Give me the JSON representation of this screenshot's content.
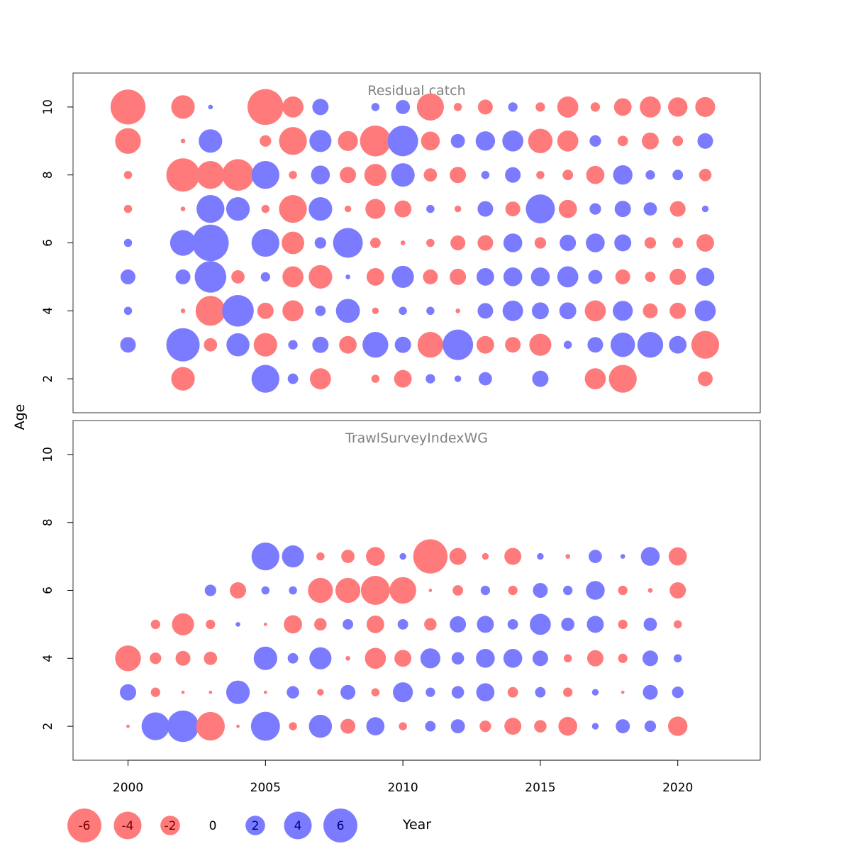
{
  "figure": {
    "ylabel": "Age",
    "xlabel": "Year",
    "colors": {
      "positive": "#7b7bff",
      "negative": "#ff7b7b",
      "panel_border": "#333333",
      "title": "#808080"
    }
  },
  "legend": {
    "values": [
      -6,
      -4,
      -2,
      0,
      2,
      4,
      6
    ],
    "labels": [
      "-6",
      "-4",
      "-2",
      "0",
      "2",
      "4",
      "6"
    ]
  },
  "chart_data": [
    {
      "type": "scatter",
      "title": "Residual catch",
      "xlim": [
        1998,
        2023
      ],
      "ylim": [
        1,
        11
      ],
      "yticks": [
        2,
        4,
        6,
        8,
        10
      ],
      "xticks": [
        2000,
        2005,
        2010,
        2015,
        2020
      ],
      "years": [
        2000,
        2002,
        2003,
        2004,
        2005,
        2006,
        2007,
        2008,
        2009,
        2010,
        2011,
        2012,
        2013,
        2014,
        2015,
        2016,
        2017,
        2018,
        2019,
        2020,
        2021
      ],
      "ages": [
        2,
        3,
        4,
        5,
        6,
        7,
        8,
        9,
        10
      ],
      "residuals": {
        "2000": [
          null,
          1.1,
          0.3,
          1.0,
          0.3,
          -0.3,
          -0.3,
          -3.0,
          -5.5
        ],
        "2002": [
          -2.5,
          5.0,
          -0.1,
          1.0,
          3.0,
          -0.1,
          -5.0,
          -0.1,
          -2.5
        ],
        "2003": [
          null,
          -0.8,
          -4.0,
          4.5,
          6.0,
          3.5,
          -3.5,
          2.5,
          0.1
        ],
        "2004": [
          null,
          2.4,
          4.5,
          -0.8,
          null,
          2.5,
          -4.5,
          null,
          null
        ],
        "2005": [
          3.5,
          -2.5,
          -1.2,
          0.4,
          3.5,
          -0.3,
          3.5,
          -0.6,
          -5.8
        ],
        "2006": [
          0.5,
          0.4,
          -2.0,
          -2.0,
          -2.3,
          -3.5,
          -0.3,
          -3.5,
          -2.0
        ],
        "2007": [
          -2.0,
          1.2,
          0.5,
          -2.5,
          0.6,
          2.5,
          1.6,
          2.2,
          1.2
        ],
        "2008": [
          null,
          -1.4,
          2.6,
          0.1,
          4.0,
          -0.2,
          -1.2,
          -1.8,
          null
        ],
        "2009": [
          -0.3,
          3.0,
          -0.2,
          -1.4,
          -0.5,
          -1.8,
          -2.2,
          -4.3,
          0.3
        ],
        "2010": [
          -1.4,
          1.2,
          0.3,
          2.2,
          -0.1,
          -1.3,
          2.5,
          4.2,
          0.9
        ],
        "2011": [
          0.4,
          -3.0,
          0.3,
          -1.0,
          -0.3,
          0.3,
          -0.8,
          -1.6,
          -3.3
        ],
        "2012": [
          0.2,
          4.2,
          -0.1,
          -1.2,
          -1.0,
          -0.2,
          -1.2,
          0.9,
          -0.3
        ],
        "2013": [
          0.8,
          -1.4,
          1.1,
          1.4,
          -1.1,
          1.1,
          0.3,
          1.7,
          -1.0
        ],
        "2014": [
          null,
          -1.1,
          1.9,
          1.6,
          1.6,
          -1.0,
          1.1,
          2.0,
          0.4
        ],
        "2015": [
          1.2,
          -2.2,
          1.3,
          1.6,
          -0.6,
          3.8,
          -0.3,
          -2.7,
          -0.4
        ],
        "2016": [
          null,
          0.3,
          1.3,
          2.0,
          1.2,
          -1.5,
          -0.5,
          -2.0,
          -2.0
        ],
        "2017": [
          -2.0,
          1.1,
          -2.0,
          0.9,
          1.6,
          0.6,
          -1.5,
          0.6,
          -0.4
        ],
        "2018": [
          -3.5,
          2.7,
          1.8,
          -1.0,
          1.3,
          1.2,
          1.7,
          -0.5,
          -1.4
        ],
        "2019": [
          null,
          3.0,
          -1.0,
          -0.5,
          -0.6,
          0.8,
          0.4,
          -1.3,
          -2.0
        ],
        "2020": [
          null,
          1.4,
          -1.2,
          -1.2,
          -0.5,
          -1.1,
          0.5,
          -0.5,
          -1.7
        ],
        "2021": [
          -1.0,
          -3.5,
          2.0,
          1.5,
          -1.4,
          0.2,
          -0.7,
          1.1,
          -1.8
        ]
      }
    },
    {
      "type": "scatter",
      "title": "TrawlSurveyIndexWG",
      "xlim": [
        1998,
        2023
      ],
      "ylim": [
        1,
        11
      ],
      "yticks": [
        2,
        4,
        6,
        8,
        10
      ],
      "xticks": [
        2000,
        2005,
        2010,
        2015,
        2020
      ],
      "years": [
        2000,
        2001,
        2002,
        2003,
        2004,
        2005,
        2006,
        2007,
        2008,
        2009,
        2010,
        2011,
        2012,
        2013,
        2014,
        2015,
        2016,
        2017,
        2018,
        2019,
        2020
      ],
      "ages": [
        2,
        3,
        4,
        5,
        6,
        7
      ],
      "residuals": {
        "2000": [
          -0.05,
          1.2,
          -3.0,
          null,
          null,
          null
        ],
        "2001": [
          3.5,
          -0.4,
          -0.6,
          -0.4,
          null,
          null
        ],
        "2002": [
          4.5,
          -0.05,
          -1.0,
          -2.2,
          null,
          null
        ],
        "2003": [
          -3.7,
          -0.05,
          -0.8,
          -0.4,
          0.6,
          null
        ],
        "2004": [
          -0.05,
          2.5,
          null,
          0.1,
          -1.2,
          null
        ],
        "2005": [
          3.8,
          -0.05,
          2.5,
          -0.05,
          0.3,
          3.5
        ],
        "2006": [
          -0.3,
          0.7,
          0.5,
          -1.5,
          0.3,
          2.2
        ],
        "2007": [
          2.4,
          -0.2,
          2.2,
          -0.7,
          -2.8,
          -0.3
        ],
        "2008": [
          -1.0,
          1.0,
          -0.1,
          0.5,
          -2.8,
          -0.8
        ],
        "2009": [
          1.5,
          -0.3,
          -2.0,
          -1.4,
          -3.8,
          -1.6
        ],
        "2010": [
          -0.3,
          1.8,
          -1.3,
          0.5,
          -3.2,
          0.2
        ],
        "2011": [
          0.5,
          0.4,
          1.8,
          -0.7,
          -0.05,
          -5.3
        ],
        "2012": [
          0.9,
          0.7,
          0.7,
          1.2,
          -0.5,
          -1.3
        ],
        "2013": [
          -0.6,
          1.5,
          1.6,
          1.3,
          0.4,
          -0.2
        ],
        "2014": [
          -1.3,
          -0.5,
          1.6,
          0.5,
          -0.4,
          -1.3
        ],
        "2015": [
          -0.7,
          0.5,
          1.1,
          2.0,
          1.0,
          0.2
        ],
        "2016": [
          -1.6,
          -0.4,
          -0.3,
          0.8,
          0.4,
          -0.1
        ],
        "2017": [
          0.2,
          0.2,
          -1.2,
          1.3,
          1.6,
          0.8
        ],
        "2018": [
          0.9,
          -0.05,
          -0.4,
          -0.4,
          -0.4,
          0.1
        ],
        "2019": [
          0.6,
          1.0,
          1.1,
          0.8,
          -0.1,
          1.6
        ],
        "2020": [
          -1.7,
          0.6,
          0.3,
          -0.3,
          -1.2,
          -1.5
        ]
      }
    }
  ]
}
